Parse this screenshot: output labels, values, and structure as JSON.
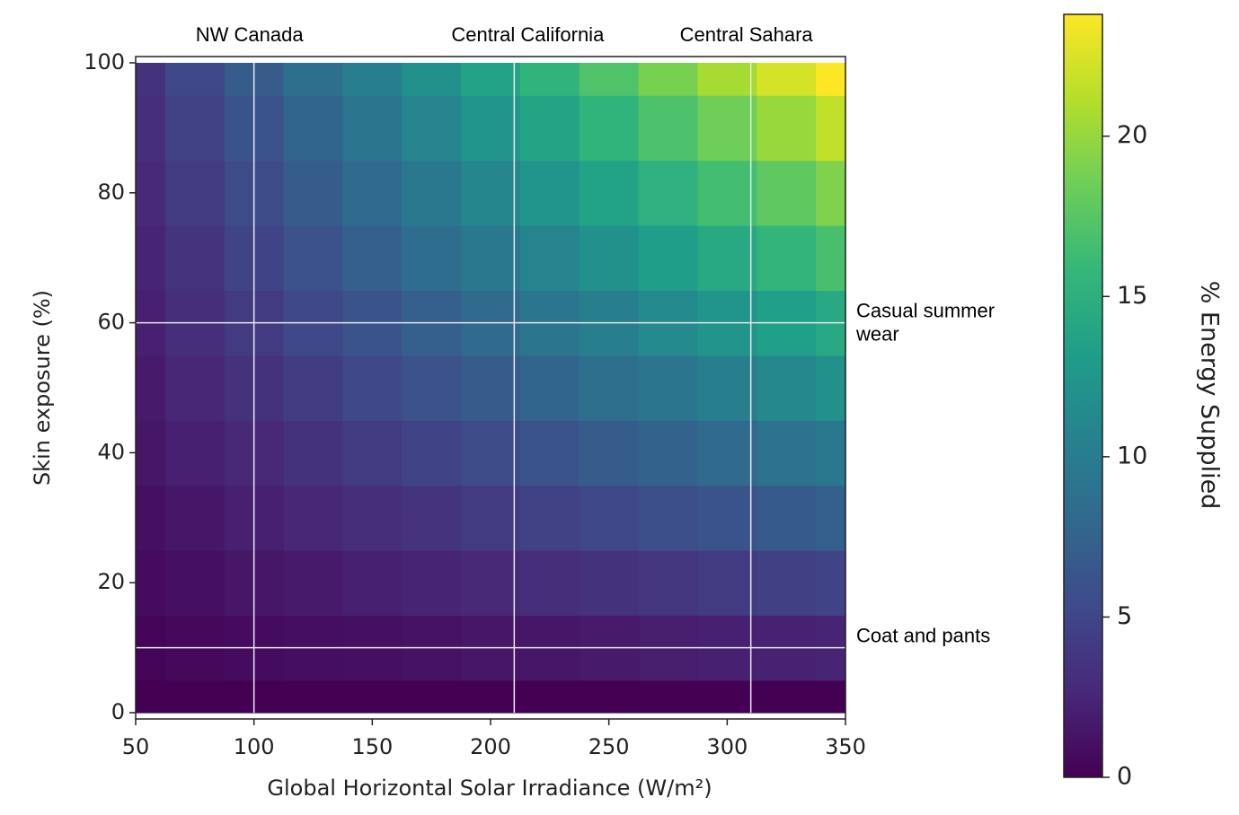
{
  "chart_data": {
    "type": "heatmap",
    "colormap": "viridis",
    "x_label": "Global Horizontal Solar Irradiance (W/m²)",
    "y_label": "Skin exposure (%)",
    "colorbar_label": "% Energy Supplied",
    "x": [
      50,
      75,
      100,
      125,
      150,
      175,
      200,
      225,
      250,
      275,
      300,
      325,
      350
    ],
    "y": [
      0,
      10,
      20,
      30,
      40,
      50,
      60,
      70,
      80,
      90,
      100
    ],
    "z": [
      [
        0,
        0,
        0,
        0,
        0,
        0,
        0,
        0,
        0,
        0,
        0,
        0,
        0
      ],
      [
        0.3,
        0.5,
        0.7,
        0.9,
        1.0,
        1.2,
        1.4,
        1.5,
        1.7,
        1.9,
        2.1,
        2.2,
        2.4
      ],
      [
        0.7,
        1.0,
        1.4,
        1.7,
        2.1,
        2.4,
        2.7,
        3.1,
        3.4,
        3.8,
        4.1,
        4.5,
        4.8
      ],
      [
        1.0,
        1.5,
        2.1,
        2.6,
        3.1,
        3.6,
        4.1,
        4.6,
        5.1,
        5.7,
        6.2,
        6.7,
        7.2
      ],
      [
        1.4,
        2.1,
        2.7,
        3.4,
        4.1,
        4.8,
        5.5,
        6.2,
        6.9,
        7.5,
        8.2,
        8.9,
        9.6
      ],
      [
        1.7,
        2.6,
        3.4,
        4.3,
        5.1,
        6.0,
        6.9,
        7.7,
        8.6,
        9.4,
        10.3,
        11.1,
        12.0
      ],
      [
        2.1,
        3.1,
        4.1,
        5.1,
        6.2,
        7.2,
        8.2,
        9.3,
        10.3,
        11.3,
        12.3,
        13.4,
        14.4
      ],
      [
        2.4,
        3.6,
        4.8,
        6.0,
        7.2,
        8.4,
        9.6,
        10.8,
        12.0,
        13.2,
        14.4,
        15.6,
        16.8
      ],
      [
        2.7,
        4.1,
        5.5,
        6.9,
        8.2,
        9.6,
        11.0,
        12.3,
        13.7,
        15.1,
        16.5,
        17.8,
        19.2
      ],
      [
        3.1,
        4.6,
        6.2,
        7.7,
        9.3,
        10.8,
        12.3,
        13.9,
        15.4,
        17.0,
        18.5,
        20.1,
        21.6
      ],
      [
        3.4,
        5.1,
        6.9,
        8.6,
        10.3,
        12.0,
        13.7,
        15.4,
        17.1,
        18.9,
        20.6,
        22.3,
        24.0
      ]
    ],
    "xlim": [
      50,
      350
    ],
    "ylim": [
      0,
      100
    ],
    "xticks": [
      50,
      100,
      150,
      200,
      250,
      300,
      350
    ],
    "yticks": [
      0,
      20,
      40,
      60,
      80,
      100
    ],
    "clim": [
      0,
      23.8
    ],
    "cticks": [
      0,
      5,
      10,
      15,
      20
    ],
    "x_markers": [
      {
        "value": 100,
        "label": "NW Canada"
      },
      {
        "value": 210,
        "label": "Central California"
      },
      {
        "value": 310,
        "label": "Central Sahara"
      }
    ],
    "y_markers": [
      {
        "value": 60,
        "label": [
          "Casual summer",
          "wear"
        ]
      },
      {
        "value": 10,
        "label": [
          "Coat and pants"
        ]
      }
    ]
  }
}
